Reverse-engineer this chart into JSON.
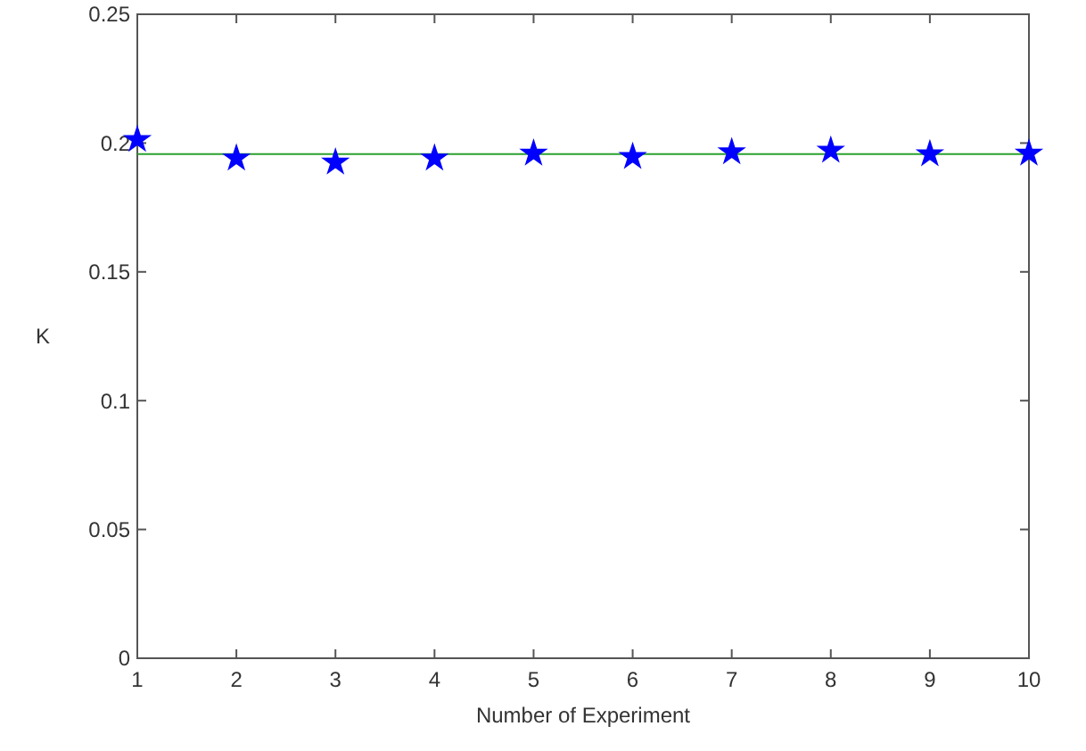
{
  "chart_data": {
    "type": "scatter",
    "xlabel": "Number of Experiment",
    "ylabel": "K",
    "x": [
      1,
      2,
      3,
      4,
      5,
      6,
      7,
      8,
      9,
      10
    ],
    "series": [
      {
        "color": "#0000ff",
        "values": [
          0.2013,
          0.1941,
          0.1925,
          0.1941,
          0.196,
          0.1947,
          0.1965,
          0.1971,
          0.1957,
          0.196
        ]
      }
    ],
    "xlim": [
      1,
      10
    ],
    "xticks": [
      1,
      2,
      3,
      4,
      5,
      6,
      7,
      8,
      9,
      10
    ],
    "ylim": [
      0,
      0.25
    ],
    "yticks": [
      0,
      0.05,
      0.1,
      0.15,
      0.2,
      0.25
    ],
    "ref_lines": [
      {
        "axis": "y",
        "value": 0.1957,
        "color": "#2ca02c",
        "line_style": "solid"
      }
    ],
    "marker": "star",
    "grid": false
  }
}
